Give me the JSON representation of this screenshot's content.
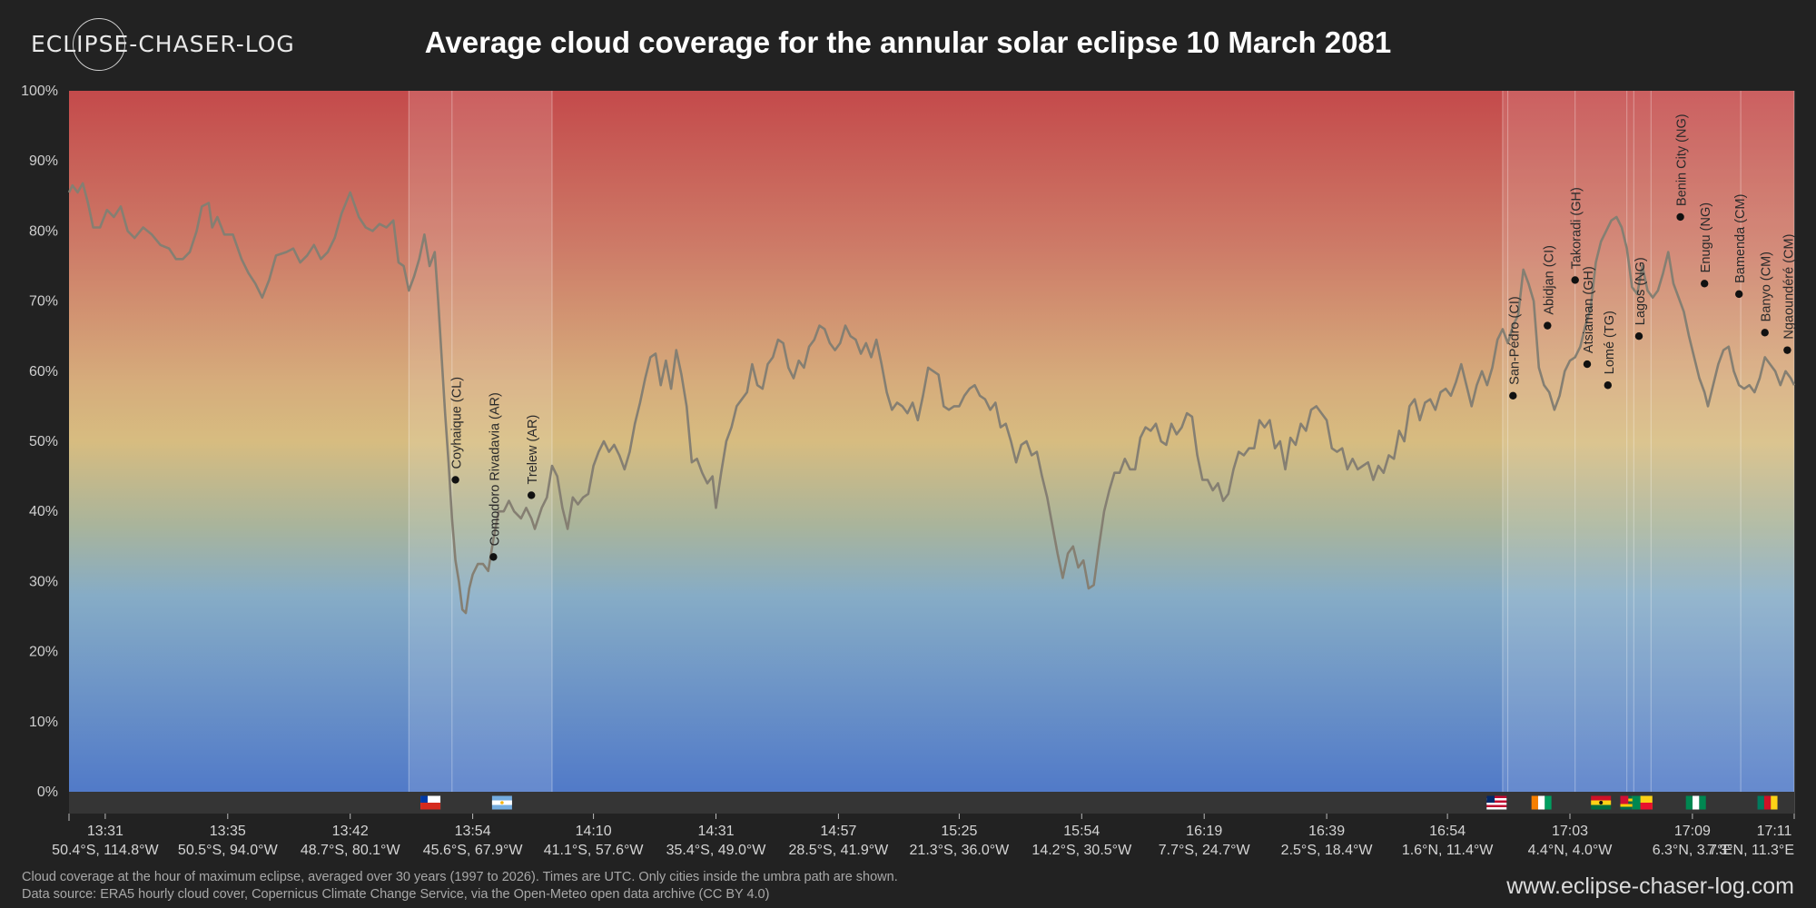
{
  "brand": {
    "logo_text": "ECLIPSE-CHASER-LOG",
    "site": "www.eclipse-chaser-log.com"
  },
  "title": "Average cloud coverage for the annular solar eclipse 10 March 2081",
  "footnotes": [
    "Cloud coverage at the hour of maximum eclipse, averaged over 30 years (1997 to 2026). Times are UTC. Only cities inside the umbra path are shown.",
    "Data source: ERA5 hourly cloud cover, Copernicus Climate Change Service, via the Open-Meteo open data archive (CC BY 4.0)"
  ],
  "colors": {
    "high": "#c44a4a",
    "mid": "#d7b67e",
    "low": "#517ac8",
    "line": "#8a8a7a"
  },
  "chart_data": {
    "type": "line",
    "ylim": [
      0,
      100
    ],
    "xlim": [
      0,
      1000
    ],
    "yticks": [
      0,
      10,
      20,
      30,
      40,
      50,
      60,
      70,
      80,
      90,
      100
    ],
    "ytick_suffix": "%",
    "xticks": [
      {
        "x": 21,
        "time": "13:31",
        "coord": "50.4°S, 114.8°W"
      },
      {
        "x": 92,
        "time": "13:35",
        "coord": "50.5°S, 94.0°W"
      },
      {
        "x": 163,
        "time": "13:42",
        "coord": "48.7°S, 80.1°W"
      },
      {
        "x": 234,
        "time": "13:54",
        "coord": "45.6°S, 67.9°W"
      },
      {
        "x": 304,
        "time": "14:10",
        "coord": "41.1°S, 57.6°W"
      },
      {
        "x": 375,
        "time": "14:31",
        "coord": "35.4°S, 49.0°W"
      },
      {
        "x": 446,
        "time": "14:57",
        "coord": "28.5°S, 41.9°W"
      },
      {
        "x": 516,
        "time": "15:25",
        "coord": "21.3°S, 36.0°W"
      },
      {
        "x": 587,
        "time": "15:54",
        "coord": "14.2°S, 30.5°W"
      },
      {
        "x": 658,
        "time": "16:19",
        "coord": "7.7°S, 24.7°W"
      },
      {
        "x": 729,
        "time": "16:39",
        "coord": "2.5°S, 18.4°W"
      },
      {
        "x": 799,
        "time": "16:54",
        "coord": "1.6°N, 11.4°W"
      },
      {
        "x": 870,
        "time": "17:03",
        "coord": "4.4°N, 4.0°W"
      },
      {
        "x": 941,
        "time": "17:09",
        "coord": "6.3°N, 3.7°E"
      },
      {
        "x": 1000,
        "time": "17:11",
        "coord": "7.3°N, 11.3°E"
      }
    ],
    "series_points": [
      [
        0,
        85.5
      ],
      [
        2,
        86.5
      ],
      [
        5,
        85.5
      ],
      [
        8,
        86.8
      ],
      [
        11,
        84
      ],
      [
        14,
        80.5
      ],
      [
        18,
        80.5
      ],
      [
        22,
        83
      ],
      [
        26,
        82
      ],
      [
        30,
        83.5
      ],
      [
        34,
        80
      ],
      [
        38,
        79
      ],
      [
        43,
        80.5
      ],
      [
        48,
        79.5
      ],
      [
        53,
        78
      ],
      [
        58,
        77.5
      ],
      [
        62,
        76
      ],
      [
        66,
        76
      ],
      [
        70,
        77
      ],
      [
        74,
        80
      ],
      [
        77,
        83.5
      ],
      [
        81,
        84
      ],
      [
        83,
        80.5
      ],
      [
        86,
        82
      ],
      [
        90,
        79.5
      ],
      [
        95,
        79.5
      ],
      [
        100,
        76
      ],
      [
        104,
        74
      ],
      [
        108,
        72.5
      ],
      [
        112,
        70.5
      ],
      [
        116,
        73
      ],
      [
        120,
        76.5
      ],
      [
        126,
        77
      ],
      [
        130,
        77.5
      ],
      [
        134,
        75.5
      ],
      [
        138,
        76.5
      ],
      [
        142,
        78
      ],
      [
        146,
        76
      ],
      [
        150,
        77
      ],
      [
        154,
        79
      ],
      [
        158,
        82.5
      ],
      [
        163,
        85.5
      ],
      [
        168,
        82
      ],
      [
        172,
        80.5
      ],
      [
        176,
        80
      ],
      [
        180,
        81
      ],
      [
        184,
        80.5
      ],
      [
        188,
        81.5
      ],
      [
        191,
        75.5
      ],
      [
        194,
        75
      ],
      [
        197,
        71.5
      ],
      [
        200,
        73.5
      ],
      [
        203,
        76
      ],
      [
        206,
        79.5
      ],
      [
        209,
        75
      ],
      [
        212,
        77
      ],
      [
        214,
        70
      ],
      [
        216,
        62
      ],
      [
        218,
        54
      ],
      [
        220,
        47
      ],
      [
        222,
        39
      ],
      [
        224,
        33
      ],
      [
        226,
        30
      ],
      [
        228,
        26
      ],
      [
        230,
        25.5
      ],
      [
        232,
        29
      ],
      [
        234,
        31
      ],
      [
        237,
        32.5
      ],
      [
        240,
        32.5
      ],
      [
        243,
        31.5
      ],
      [
        246,
        36
      ],
      [
        249,
        40
      ],
      [
        252,
        40
      ],
      [
        255,
        41.5
      ],
      [
        258,
        40
      ],
      [
        262,
        39
      ],
      [
        265,
        40.5
      ],
      [
        268,
        39
      ],
      [
        270,
        37.5
      ],
      [
        274,
        40.5
      ],
      [
        277,
        42
      ],
      [
        280,
        46.5
      ],
      [
        283,
        45
      ],
      [
        286,
        40.5
      ],
      [
        289,
        37.5
      ],
      [
        292,
        42
      ],
      [
        295,
        41
      ],
      [
        298,
        42
      ],
      [
        301,
        42.5
      ],
      [
        304,
        46.5
      ],
      [
        307,
        48.5
      ],
      [
        310,
        50
      ],
      [
        313,
        48.5
      ],
      [
        316,
        49.5
      ],
      [
        319,
        48
      ],
      [
        322,
        46
      ],
      [
        325,
        48.5
      ],
      [
        328,
        52.5
      ],
      [
        331,
        55.5
      ],
      [
        334,
        59
      ],
      [
        337,
        62
      ],
      [
        340,
        62.5
      ],
      [
        343,
        58
      ],
      [
        346,
        61.5
      ],
      [
        349,
        57.5
      ],
      [
        352,
        63
      ],
      [
        355,
        59.5
      ],
      [
        358,
        55
      ],
      [
        361,
        47
      ],
      [
        364,
        47.5
      ],
      [
        367,
        45.5
      ],
      [
        370,
        44
      ],
      [
        373,
        45
      ],
      [
        375,
        40.5
      ],
      [
        378,
        45.5
      ],
      [
        381,
        50
      ],
      [
        384,
        52
      ],
      [
        387,
        55
      ],
      [
        390,
        56
      ],
      [
        393,
        57
      ],
      [
        396,
        61
      ],
      [
        399,
        58
      ],
      [
        402,
        57.5
      ],
      [
        405,
        61
      ],
      [
        408,
        62
      ],
      [
        411,
        64.5
      ],
      [
        414,
        64
      ],
      [
        417,
        60.5
      ],
      [
        420,
        59
      ],
      [
        423,
        61.5
      ],
      [
        426,
        60.5
      ],
      [
        429,
        63.5
      ],
      [
        432,
        64.5
      ],
      [
        435,
        66.5
      ],
      [
        438,
        66
      ],
      [
        441,
        64
      ],
      [
        444,
        63
      ],
      [
        447,
        64
      ],
      [
        450,
        66.5
      ],
      [
        453,
        65
      ],
      [
        456,
        64.5
      ],
      [
        459,
        62.5
      ],
      [
        462,
        64
      ],
      [
        465,
        62
      ],
      [
        468,
        64.5
      ],
      [
        471,
        61
      ],
      [
        474,
        57
      ],
      [
        477,
        54.5
      ],
      [
        480,
        55.5
      ],
      [
        483,
        55
      ],
      [
        486,
        54
      ],
      [
        489,
        55.5
      ],
      [
        492,
        53
      ],
      [
        495,
        56.5
      ],
      [
        498,
        60.5
      ],
      [
        501,
        60
      ],
      [
        504,
        59.5
      ],
      [
        507,
        55
      ],
      [
        510,
        54.5
      ],
      [
        513,
        55
      ],
      [
        516,
        55
      ],
      [
        519,
        56.5
      ],
      [
        522,
        57.5
      ],
      [
        525,
        58
      ],
      [
        528,
        56.5
      ],
      [
        531,
        56
      ],
      [
        534,
        54.5
      ],
      [
        537,
        55.5
      ],
      [
        540,
        52
      ],
      [
        543,
        52.5
      ],
      [
        546,
        50
      ],
      [
        549,
        47
      ],
      [
        552,
        49.5
      ],
      [
        555,
        50
      ],
      [
        558,
        48
      ],
      [
        561,
        48.5
      ],
      [
        564,
        45
      ],
      [
        567,
        42
      ],
      [
        570,
        38
      ],
      [
        573,
        34
      ],
      [
        576,
        30.5
      ],
      [
        579,
        34
      ],
      [
        582,
        35
      ],
      [
        585,
        32
      ],
      [
        588,
        33
      ],
      [
        591,
        29
      ],
      [
        594,
        29.5
      ],
      [
        597,
        35
      ],
      [
        600,
        40
      ],
      [
        603,
        43
      ],
      [
        606,
        45.5
      ],
      [
        609,
        45.5
      ],
      [
        612,
        47.5
      ],
      [
        615,
        46
      ],
      [
        618,
        46
      ],
      [
        621,
        50.5
      ],
      [
        624,
        52
      ],
      [
        627,
        51.5
      ],
      [
        630,
        52.5
      ],
      [
        633,
        50
      ],
      [
        636,
        49.5
      ],
      [
        639,
        52.5
      ],
      [
        642,
        51
      ],
      [
        645,
        52
      ],
      [
        648,
        54
      ],
      [
        651,
        53.5
      ],
      [
        654,
        48
      ],
      [
        657,
        44.5
      ],
      [
        660,
        44.5
      ],
      [
        663,
        43
      ],
      [
        666,
        44
      ],
      [
        669,
        41.5
      ],
      [
        672,
        42.5
      ],
      [
        675,
        46
      ],
      [
        678,
        48.5
      ],
      [
        681,
        48
      ],
      [
        684,
        49
      ],
      [
        687,
        49
      ],
      [
        690,
        53
      ],
      [
        693,
        52
      ],
      [
        696,
        53
      ],
      [
        699,
        49
      ],
      [
        702,
        50
      ],
      [
        705,
        46
      ],
      [
        708,
        50.5
      ],
      [
        711,
        49.5
      ],
      [
        714,
        52.5
      ],
      [
        717,
        51.5
      ],
      [
        720,
        54.5
      ],
      [
        723,
        55
      ],
      [
        726,
        54
      ],
      [
        729,
        53
      ],
      [
        732,
        49
      ],
      [
        735,
        48.5
      ],
      [
        738,
        49
      ],
      [
        741,
        46
      ],
      [
        744,
        47.5
      ],
      [
        747,
        46
      ],
      [
        750,
        46.5
      ],
      [
        753,
        47
      ],
      [
        756,
        44.5
      ],
      [
        759,
        46.5
      ],
      [
        762,
        45.5
      ],
      [
        765,
        48
      ],
      [
        768,
        47.5
      ],
      [
        771,
        51.5
      ],
      [
        774,
        50
      ],
      [
        777,
        55
      ],
      [
        780,
        56
      ],
      [
        783,
        53
      ],
      [
        786,
        55.5
      ],
      [
        789,
        56
      ],
      [
        792,
        54.5
      ],
      [
        795,
        57
      ],
      [
        798,
        57.5
      ],
      [
        801,
        56.5
      ],
      [
        804,
        58.5
      ],
      [
        807,
        61
      ],
      [
        810,
        58
      ],
      [
        813,
        55
      ],
      [
        816,
        58
      ],
      [
        819,
        60
      ],
      [
        822,
        58
      ],
      [
        825,
        60.5
      ],
      [
        828,
        64.5
      ],
      [
        831,
        66
      ],
      [
        834,
        64
      ],
      [
        837,
        66.5
      ],
      [
        840,
        68
      ],
      [
        843,
        74.5
      ],
      [
        846,
        72.5
      ],
      [
        849,
        70
      ],
      [
        852,
        60.5
      ],
      [
        855,
        58
      ],
      [
        858,
        57
      ],
      [
        861,
        54.5
      ],
      [
        864,
        56.5
      ],
      [
        867,
        60
      ],
      [
        870,
        61.5
      ],
      [
        873,
        62
      ],
      [
        876,
        63.5
      ],
      [
        879,
        66.5
      ],
      [
        882,
        69
      ],
      [
        885,
        75.5
      ],
      [
        888,
        78.5
      ],
      [
        891,
        80
      ],
      [
        894,
        81.5
      ],
      [
        897,
        82
      ],
      [
        900,
        80.5
      ],
      [
        903,
        77.5
      ],
      [
        906,
        72
      ],
      [
        909,
        71
      ],
      [
        912,
        75
      ],
      [
        915,
        71.5
      ],
      [
        918,
        70.5
      ],
      [
        921,
        71.5
      ],
      [
        924,
        74
      ],
      [
        927,
        77
      ],
      [
        930,
        72.5
      ],
      [
        933,
        70.5
      ],
      [
        936,
        68.5
      ],
      [
        939,
        65
      ],
      [
        942,
        62
      ],
      [
        945,
        59
      ],
      [
        948,
        57
      ],
      [
        950,
        55
      ],
      [
        953,
        58
      ],
      [
        956,
        61
      ],
      [
        959,
        63
      ],
      [
        962,
        63.5
      ],
      [
        965,
        60
      ],
      [
        968,
        58
      ],
      [
        971,
        57.5
      ],
      [
        974,
        58
      ],
      [
        977,
        57
      ],
      [
        980,
        59
      ],
      [
        983,
        62
      ],
      [
        986,
        61
      ],
      [
        989,
        60
      ],
      [
        992,
        58
      ],
      [
        995,
        60
      ],
      [
        998,
        59
      ],
      [
        1000,
        58
      ]
    ],
    "cities": [
      {
        "name": "Coyhaique (CL)",
        "x": 224,
        "y": 44.5
      },
      {
        "name": "Comodoro Rivadavia (AR)",
        "x": 246,
        "y": 33.5
      },
      {
        "name": "Trelew (AR)",
        "x": 268,
        "y": 42.3
      },
      {
        "name": "San-Pédro (CI)",
        "x": 837,
        "y": 56.5
      },
      {
        "name": "Abidjan (CI)",
        "x": 857,
        "y": 66.5
      },
      {
        "name": "Takoradi (GH)",
        "x": 873,
        "y": 73
      },
      {
        "name": "Atsiaman (GH)",
        "x": 880,
        "y": 61
      },
      {
        "name": "Lomé (TG)",
        "x": 892,
        "y": 58
      },
      {
        "name": "Lagos (NG)",
        "x": 910,
        "y": 65
      },
      {
        "name": "Benin City (NG)",
        "x": 934,
        "y": 82
      },
      {
        "name": "Enugu (NG)",
        "x": 948,
        "y": 72.5
      },
      {
        "name": "Bamenda (CM)",
        "x": 968,
        "y": 71
      },
      {
        "name": "Banyo (CM)",
        "x": 983,
        "y": 65.5
      },
      {
        "name": "Ngaoundéré (CM)",
        "x": 996,
        "y": 63
      }
    ],
    "country_bands": [
      {
        "country": "CL",
        "flag": "chile",
        "x0": 197,
        "x1": 222
      },
      {
        "country": "AR",
        "flag": "argentina",
        "x0": 222,
        "x1": 280
      },
      {
        "country": "LR",
        "flag": "liberia",
        "x0": 831,
        "x1": 834
      },
      {
        "country": "CI",
        "flag": "ivory-coast",
        "x0": 834,
        "x1": 873
      },
      {
        "country": "GH",
        "flag": "ghana",
        "x0": 873,
        "x1": 903
      },
      {
        "country": "TG",
        "flag": "togo",
        "x0": 903,
        "x1": 907
      },
      {
        "country": "BJ",
        "flag": "benin",
        "x0": 907,
        "x1": 917
      },
      {
        "country": "NG",
        "flag": "nigeria",
        "x0": 917,
        "x1": 969
      },
      {
        "country": "CM",
        "flag": "cameroon",
        "x0": 969,
        "x1": 1000
      }
    ]
  }
}
